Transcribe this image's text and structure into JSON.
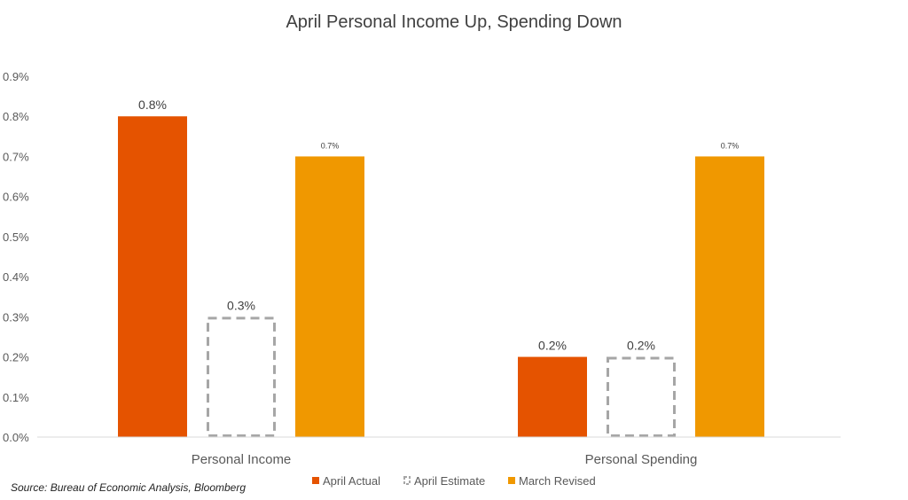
{
  "chart_data": {
    "type": "bar",
    "title": "April Personal Income Up, Spending Down",
    "xlabel": "",
    "ylabel": "",
    "categories": [
      "Personal Income",
      "Personal Spending"
    ],
    "series": [
      {
        "name": "April Actual",
        "values": [
          0.8,
          0.2
        ],
        "value_labels": [
          "0.8%",
          "0.2%"
        ],
        "color": "#e55300",
        "style": "solid"
      },
      {
        "name": "April Estimate",
        "values": [
          0.3,
          0.2
        ],
        "value_labels": [
          "0.3%",
          "0.2%"
        ],
        "color": "#a6a6a6",
        "style": "dashed-outline"
      },
      {
        "name": "March Revised",
        "values": [
          0.7,
          0.7
        ],
        "value_labels": [
          "0.7%",
          "0.7%"
        ],
        "color": "#f09800",
        "style": "solid"
      }
    ],
    "ylim": [
      0,
      0.9
    ],
    "yticks": [
      0,
      0.1,
      0.2,
      0.3,
      0.4,
      0.5,
      0.6,
      0.7,
      0.8,
      0.9
    ],
    "ytick_labels": [
      "0.0%",
      "0.1%",
      "0.2%",
      "0.3%",
      "0.4%",
      "0.5%",
      "0.6%",
      "0.7%",
      "0.8%",
      "0.9%"
    ],
    "grid": false,
    "legend_position": "bottom-right"
  },
  "source_note": "Source: Bureau of Economic Analysis, Bloomberg"
}
